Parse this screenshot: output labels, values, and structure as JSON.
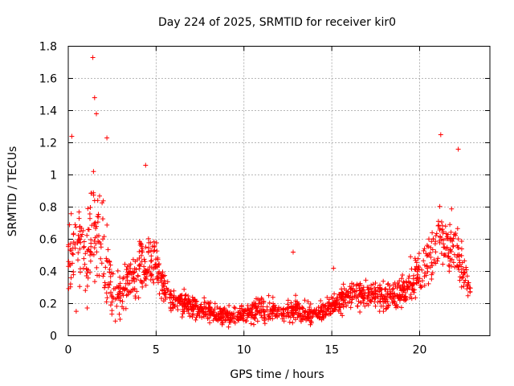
{
  "chart_data": {
    "type": "scatter",
    "title": "Day 224 of 2025, SRMTID for receiver kir0",
    "xlabel": "GPS time / hours",
    "ylabel": "SRMTID / TECUs",
    "xlim": [
      0,
      24
    ],
    "ylim": [
      0,
      1.8
    ],
    "xticks": [
      0,
      5,
      10,
      15,
      20
    ],
    "xtick_labels": [
      "0",
      "5",
      "10",
      "15",
      "20"
    ],
    "yticks": [
      0,
      0.2,
      0.4,
      0.6,
      0.8,
      1.0,
      1.2,
      1.4,
      1.6,
      1.8
    ],
    "ytick_labels": [
      "0",
      "0.2",
      "0.4",
      "0.6",
      "0.8",
      "1",
      "1.2",
      "1.4",
      "1.6",
      "1.8"
    ],
    "grid": true,
    "marker": "+",
    "color": "#ff0000",
    "series": [
      {
        "name": "SRMTID",
        "envelope": [
          {
            "x": 0.0,
            "mid": 0.5,
            "spread": 0.3
          },
          {
            "x": 0.5,
            "mid": 0.55,
            "spread": 0.45
          },
          {
            "x": 1.0,
            "mid": 0.45,
            "spread": 0.4
          },
          {
            "x": 1.5,
            "mid": 0.75,
            "spread": 0.5
          },
          {
            "x": 2.0,
            "mid": 0.55,
            "spread": 0.45
          },
          {
            "x": 2.5,
            "mid": 0.25,
            "spread": 0.22
          },
          {
            "x": 3.0,
            "mid": 0.25,
            "spread": 0.22
          },
          {
            "x": 3.5,
            "mid": 0.35,
            "spread": 0.25
          },
          {
            "x": 4.0,
            "mid": 0.4,
            "spread": 0.25
          },
          {
            "x": 4.5,
            "mid": 0.5,
            "spread": 0.3
          },
          {
            "x": 5.0,
            "mid": 0.45,
            "spread": 0.2
          },
          {
            "x": 5.5,
            "mid": 0.28,
            "spread": 0.12
          },
          {
            "x": 6.0,
            "mid": 0.22,
            "spread": 0.1
          },
          {
            "x": 7.0,
            "mid": 0.18,
            "spread": 0.1
          },
          {
            "x": 8.0,
            "mid": 0.15,
            "spread": 0.1
          },
          {
            "x": 9.0,
            "mid": 0.12,
            "spread": 0.09
          },
          {
            "x": 10.0,
            "mid": 0.14,
            "spread": 0.09
          },
          {
            "x": 11.0,
            "mid": 0.17,
            "spread": 0.11
          },
          {
            "x": 12.0,
            "mid": 0.15,
            "spread": 0.1
          },
          {
            "x": 13.0,
            "mid": 0.16,
            "spread": 0.1
          },
          {
            "x": 14.0,
            "mid": 0.13,
            "spread": 0.08
          },
          {
            "x": 15.0,
            "mid": 0.18,
            "spread": 0.1
          },
          {
            "x": 16.0,
            "mid": 0.26,
            "spread": 0.12
          },
          {
            "x": 17.0,
            "mid": 0.26,
            "spread": 0.13
          },
          {
            "x": 18.0,
            "mid": 0.25,
            "spread": 0.14
          },
          {
            "x": 19.0,
            "mid": 0.25,
            "spread": 0.14
          },
          {
            "x": 20.0,
            "mid": 0.4,
            "spread": 0.22
          },
          {
            "x": 21.0,
            "mid": 0.55,
            "spread": 0.3
          },
          {
            "x": 22.0,
            "mid": 0.55,
            "spread": 0.3
          },
          {
            "x": 22.5,
            "mid": 0.4,
            "spread": 0.2
          },
          {
            "x": 22.9,
            "mid": 0.3,
            "spread": 0.15
          }
        ],
        "x_range": [
          0,
          22.9
        ],
        "point_count": 1500,
        "extremes": [
          {
            "x": 1.4,
            "y": 1.73
          },
          {
            "x": 1.5,
            "y": 1.48
          },
          {
            "x": 1.6,
            "y": 1.38
          },
          {
            "x": 0.2,
            "y": 1.24
          },
          {
            "x": 2.2,
            "y": 1.23
          },
          {
            "x": 4.4,
            "y": 1.06
          },
          {
            "x": 21.2,
            "y": 1.25
          },
          {
            "x": 22.2,
            "y": 1.16
          },
          {
            "x": 12.8,
            "y": 0.52
          },
          {
            "x": 15.1,
            "y": 0.42
          }
        ]
      }
    ]
  }
}
